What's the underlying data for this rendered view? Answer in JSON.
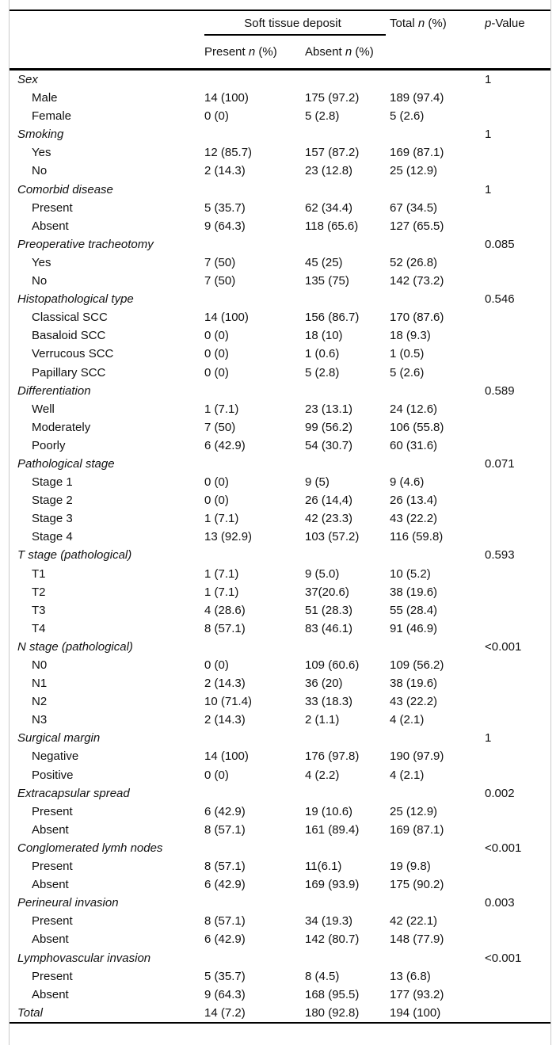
{
  "page": {
    "background_color": "#ffffff",
    "rule_color": "#000000",
    "frame_border_color": "#c9c9c9",
    "text_color": "#111111"
  },
  "header": {
    "spanner": "Soft tissue deposit",
    "present": {
      "prefix": "Present",
      "n": "n",
      "suffix": "(%)"
    },
    "absent": {
      "prefix": "Absent",
      "n": "n",
      "suffix": "(%)"
    },
    "total": {
      "prefix": "Total",
      "n": "n",
      "suffix": "(%)"
    },
    "p_value": {
      "p": "p",
      "rest": "-Value"
    }
  },
  "rows": [
    {
      "type": "group",
      "label": "Sex",
      "p": "1"
    },
    {
      "type": "sub",
      "label": "Male",
      "present": "14 (100)",
      "absent": "175 (97.2)",
      "total": "189 (97.4)"
    },
    {
      "type": "sub",
      "label": "Female",
      "present": "0 (0)",
      "absent": "5 (2.8)",
      "total": "5 (2.6)"
    },
    {
      "type": "group",
      "label": "Smoking",
      "p": "1"
    },
    {
      "type": "sub",
      "label": "Yes",
      "present": "12 (85.7)",
      "absent": "157 (87.2)",
      "total": "169 (87.1)"
    },
    {
      "type": "sub",
      "label": "No",
      "present": "2 (14.3)",
      "absent": "23 (12.8)",
      "total": "25 (12.9)"
    },
    {
      "type": "group",
      "label": "Comorbid disease",
      "p": "1"
    },
    {
      "type": "sub",
      "label": "Present",
      "present": "5 (35.7)",
      "absent": "62 (34.4)",
      "total": "67 (34.5)"
    },
    {
      "type": "sub",
      "label": "Absent",
      "present": "9 (64.3)",
      "absent": "118 (65.6)",
      "total": "127 (65.5)"
    },
    {
      "type": "group",
      "label": "Preoperative tracheotomy",
      "p": "0.085"
    },
    {
      "type": "sub",
      "label": "Yes",
      "present": "7 (50)",
      "absent": "45 (25)",
      "total": "52 (26.8)"
    },
    {
      "type": "sub",
      "label": "No",
      "present": "7 (50)",
      "absent": "135 (75)",
      "total": "142 (73.2)"
    },
    {
      "type": "group",
      "label": "Histopathological type",
      "p": "0.546"
    },
    {
      "type": "sub",
      "label": "Classical SCC",
      "present": "14 (100)",
      "absent": "156 (86.7)",
      "total": "170 (87.6)"
    },
    {
      "type": "sub",
      "label": "Basaloid SCC",
      "present": "0 (0)",
      "absent": "18 (10)",
      "total": "18 (9.3)"
    },
    {
      "type": "sub",
      "label": "Verrucous SCC",
      "present": "0 (0)",
      "absent": "1 (0.6)",
      "total": "1 (0.5)"
    },
    {
      "type": "sub",
      "label": "Papillary SCC",
      "present": "0 (0)",
      "absent": "5 (2.8)",
      "total": "5 (2.6)"
    },
    {
      "type": "group",
      "label": "Differentiation",
      "p": "0.589"
    },
    {
      "type": "sub",
      "label": "Well",
      "present": "1 (7.1)",
      "absent": "23 (13.1)",
      "total": "24 (12.6)"
    },
    {
      "type": "sub",
      "label": "Moderately",
      "present": "7 (50)",
      "absent": "99 (56.2)",
      "total": "106 (55.8)"
    },
    {
      "type": "sub",
      "label": "Poorly",
      "present": "6 (42.9)",
      "absent": "54 (30.7)",
      "total": "60 (31.6)"
    },
    {
      "type": "group",
      "label": "Pathological stage",
      "p": "0.071"
    },
    {
      "type": "sub",
      "label": "Stage 1",
      "present": "0 (0)",
      "absent": "9 (5)",
      "total": "9 (4.6)"
    },
    {
      "type": "sub",
      "label": "Stage 2",
      "present": "0 (0)",
      "absent": "26 (14,4)",
      "total": "26 (13.4)"
    },
    {
      "type": "sub",
      "label": "Stage 3",
      "present": "1 (7.1)",
      "absent": "42 (23.3)",
      "total": "43 (22.2)"
    },
    {
      "type": "sub",
      "label": "Stage 4",
      "present": "13 (92.9)",
      "absent": "103 (57.2)",
      "total": "116 (59.8)"
    },
    {
      "type": "group",
      "label": "T stage (pathological)",
      "p": "0.593"
    },
    {
      "type": "sub",
      "label": "T1",
      "present": "1 (7.1)",
      "absent": "9 (5.0)",
      "total": "10 (5.2)"
    },
    {
      "type": "sub",
      "label": "T2",
      "present": "1 (7.1)",
      "absent": "37(20.6)",
      "total": "38 (19.6)"
    },
    {
      "type": "sub",
      "label": "T3",
      "present": "4 (28.6)",
      "absent": "51 (28.3)",
      "total": "55 (28.4)"
    },
    {
      "type": "sub",
      "label": "T4",
      "present": "8 (57.1)",
      "absent": "83 (46.1)",
      "total": "91 (46.9)"
    },
    {
      "type": "group",
      "label": "N stage (pathological)",
      "p": "<0.001"
    },
    {
      "type": "sub",
      "label": "N0",
      "present": "0 (0)",
      "absent": "109 (60.6)",
      "total": "109 (56.2)"
    },
    {
      "type": "sub",
      "label": "N1",
      "present": "2 (14.3)",
      "absent": "36 (20)",
      "total": "38 (19.6)"
    },
    {
      "type": "sub",
      "label": "N2",
      "present": "10 (71.4)",
      "absent": "33 (18.3)",
      "total": "43 (22.2)"
    },
    {
      "type": "sub",
      "label": "N3",
      "present": "2 (14.3)",
      "absent": "2 (1.1)",
      "total": "4 (2.1)"
    },
    {
      "type": "group",
      "label": "Surgical margin",
      "p": "1"
    },
    {
      "type": "sub",
      "label": "Negative",
      "present": "14 (100)",
      "absent": "176 (97.8)",
      "total": "190 (97.9)"
    },
    {
      "type": "sub",
      "label": "Positive",
      "present": "0 (0)",
      "absent": "4 (2.2)",
      "total": "4 (2.1)"
    },
    {
      "type": "group",
      "label": "Extracapsular spread",
      "p": "0.002"
    },
    {
      "type": "sub",
      "label": "Present",
      "present": "6 (42.9)",
      "absent": "19 (10.6)",
      "total": "25 (12.9)"
    },
    {
      "type": "sub",
      "label": "Absent",
      "present": "8 (57.1)",
      "absent": "161 (89.4)",
      "total": "169 (87.1)"
    },
    {
      "type": "group",
      "label": "Conglomerated lymh nodes",
      "p": "<0.001"
    },
    {
      "type": "sub",
      "label": "Present",
      "present": "8 (57.1)",
      "absent": "11(6.1)",
      "total": "19 (9.8)"
    },
    {
      "type": "sub",
      "label": "Absent",
      "present": "6 (42.9)",
      "absent": "169 (93.9)",
      "total": "175 (90.2)"
    },
    {
      "type": "group",
      "label": "Perineural invasion",
      "p": "0.003"
    },
    {
      "type": "sub",
      "label": "Present",
      "present": "8 (57.1)",
      "absent": "34 (19.3)",
      "total": "42 (22.1)"
    },
    {
      "type": "sub",
      "label": "Absent",
      "present": "6 (42.9)",
      "absent": "142 (80.7)",
      "total": "148 (77.9)"
    },
    {
      "type": "group",
      "label": "Lymphovascular invasion",
      "p": "<0.001"
    },
    {
      "type": "sub",
      "label": "Present",
      "present": "5 (35.7)",
      "absent": "8 (4.5)",
      "total": "13 (6.8)"
    },
    {
      "type": "sub",
      "label": "Absent",
      "present": "9 (64.3)",
      "absent": "168 (95.5)",
      "total": "177 (93.2)"
    },
    {
      "type": "total",
      "label": "Total",
      "present": "14 (7.2)",
      "absent": "180 (92.8)",
      "total": "194 (100)"
    }
  ]
}
